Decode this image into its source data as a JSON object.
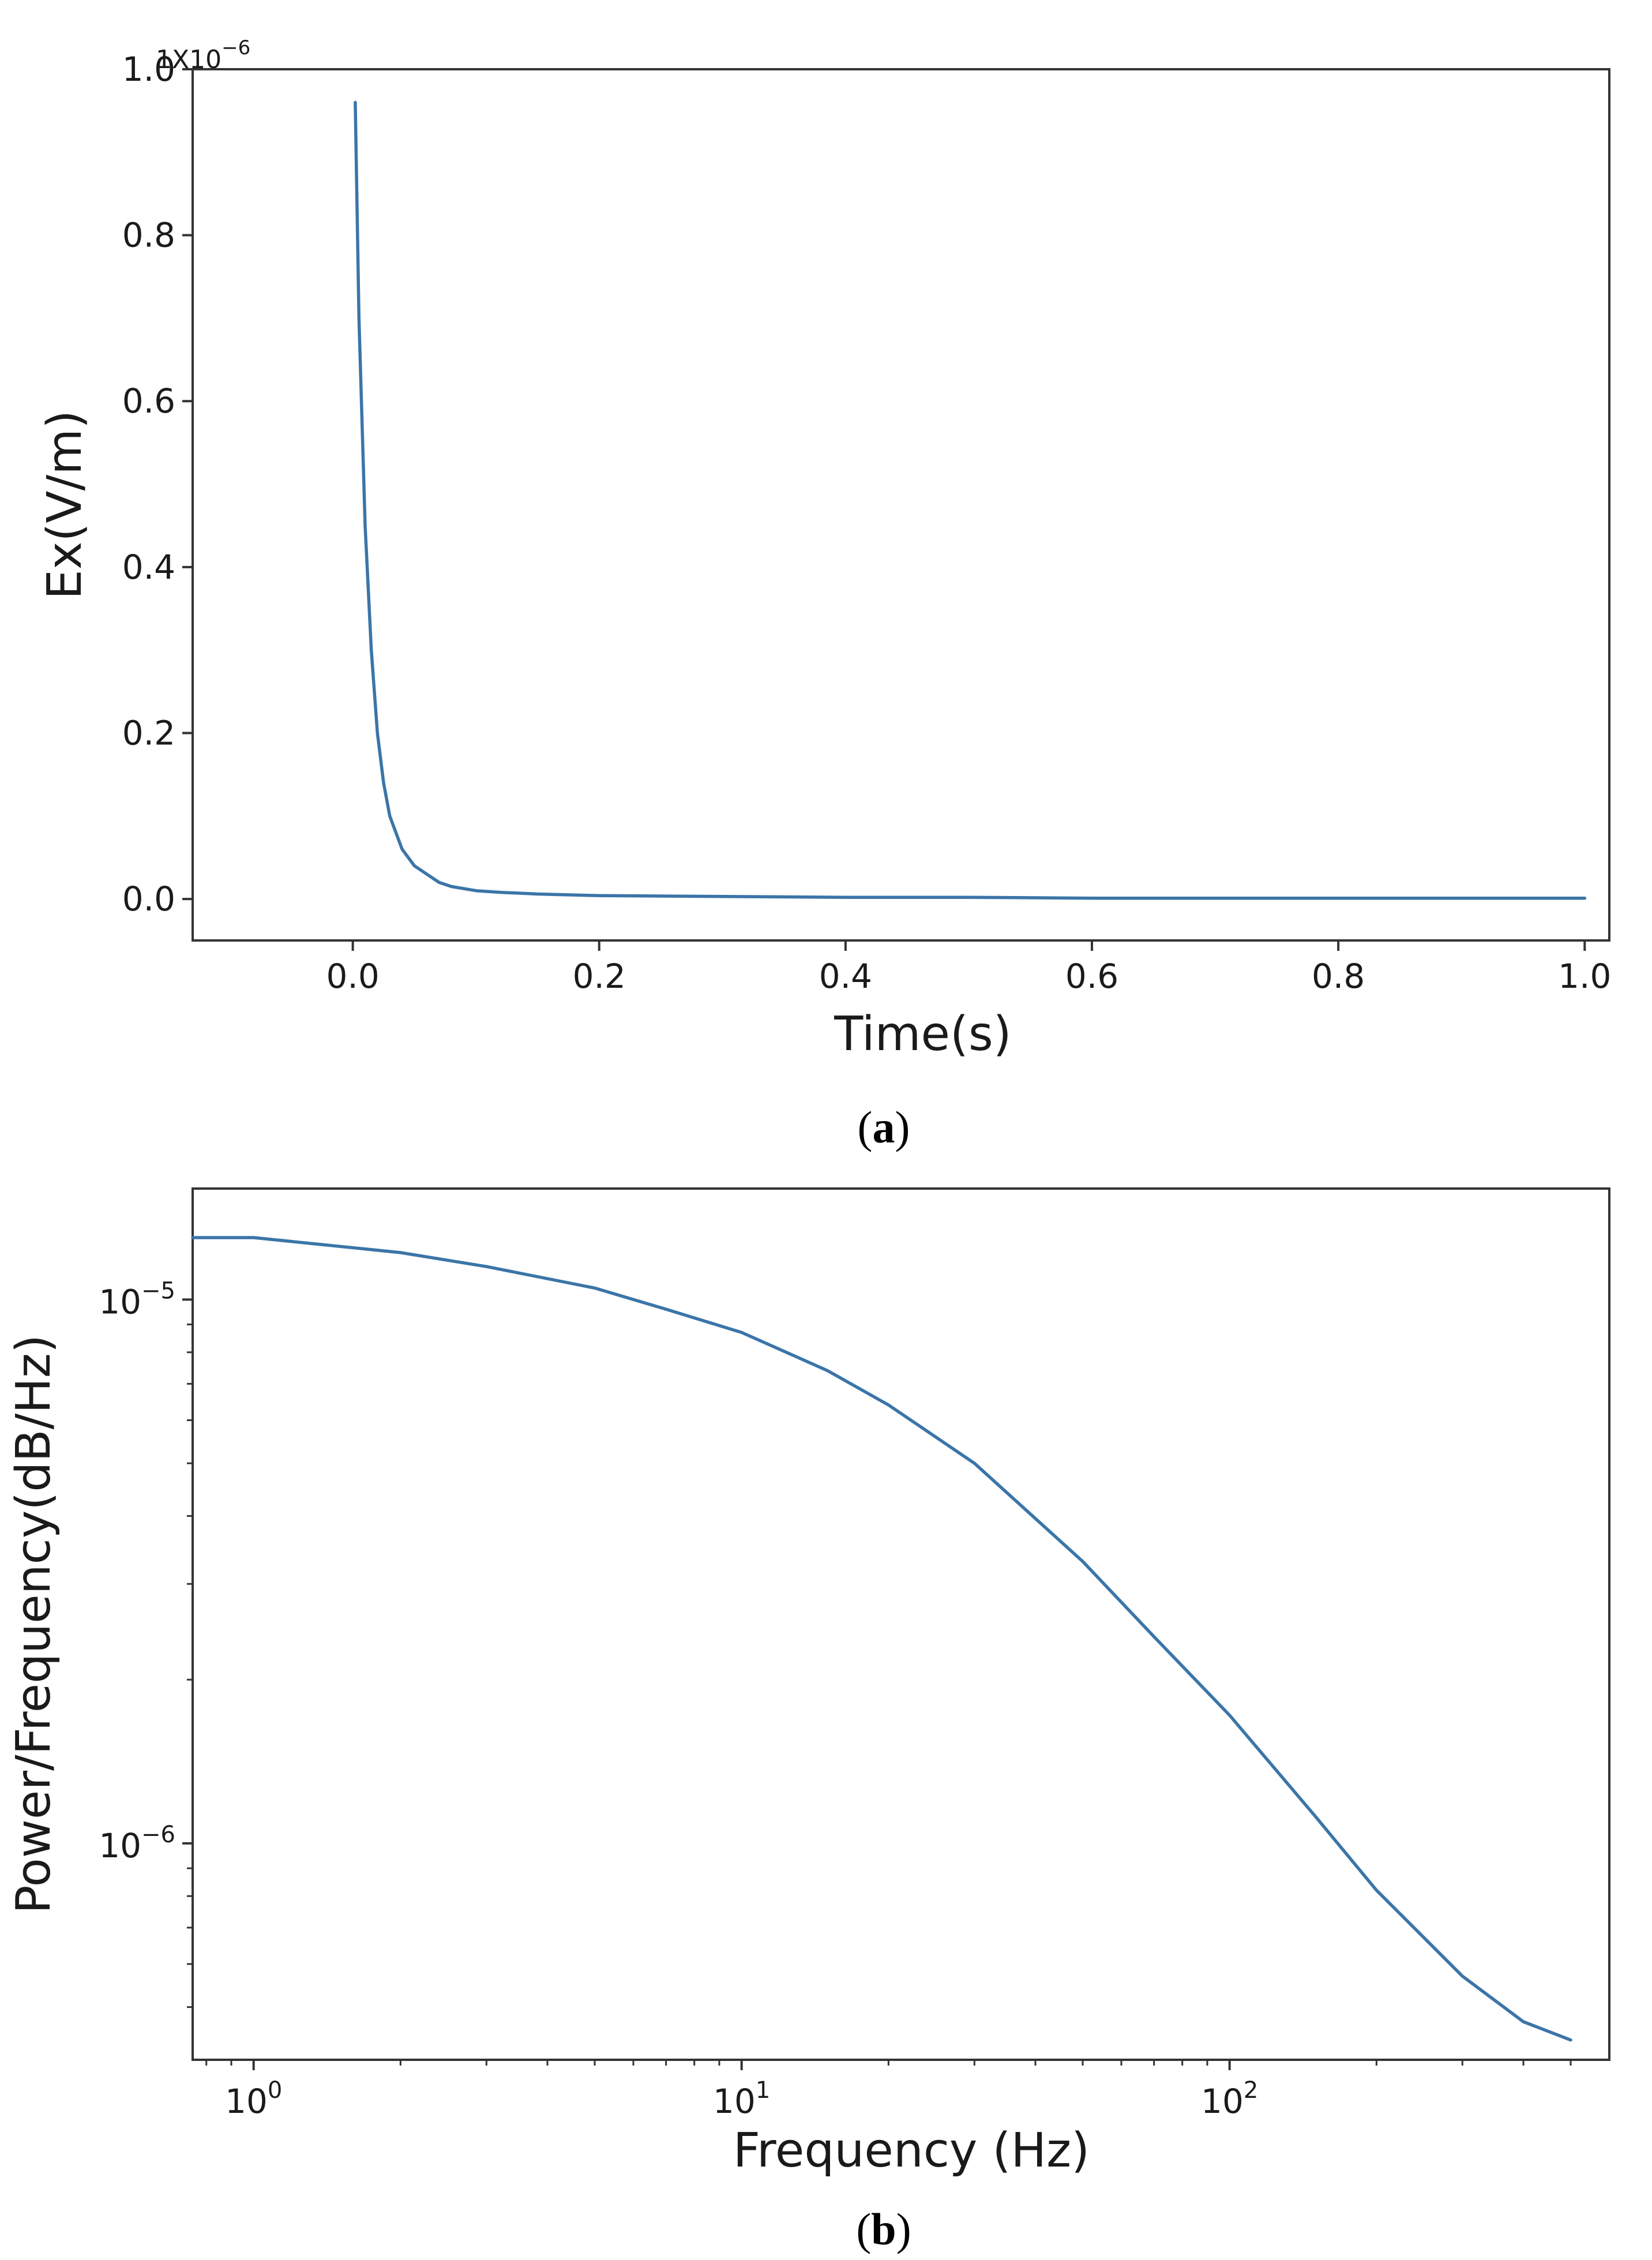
{
  "chart_data": [
    {
      "type": "line",
      "caption": "(a)",
      "caption_letter": "a",
      "xlabel": "Time(s)",
      "ylabel": "Ex(V/m)",
      "y_offset_label": "1X10",
      "y_offset_exponent": "−6",
      "xlim": [
        -0.13,
        1.02
      ],
      "ylim": [
        -0.05,
        1.0
      ],
      "x_ticks": [
        0.0,
        0.2,
        0.4,
        0.6,
        0.8,
        1.0
      ],
      "x_tick_labels": [
        "0.0",
        "0.2",
        "0.4",
        "0.6",
        "0.8",
        "1.0"
      ],
      "y_ticks": [
        0.0,
        0.2,
        0.4,
        0.6,
        0.8,
        1.0
      ],
      "y_tick_labels": [
        "0.0",
        "0.2",
        "0.4",
        "0.6",
        "0.8",
        "1.0"
      ],
      "grid": false,
      "color": "#3b75a8",
      "series": [
        {
          "x": [
            0.002,
            0.005,
            0.01,
            0.015,
            0.02,
            0.025,
            0.03,
            0.04,
            0.05,
            0.06,
            0.07,
            0.08,
            0.1,
            0.12,
            0.15,
            0.2,
            0.3,
            0.4,
            0.5,
            0.6,
            0.7,
            0.8,
            0.9,
            1.0
          ],
          "y": [
            0.96,
            0.7,
            0.45,
            0.3,
            0.2,
            0.14,
            0.1,
            0.06,
            0.04,
            0.03,
            0.02,
            0.015,
            0.01,
            0.008,
            0.006,
            0.004,
            0.003,
            0.002,
            0.002,
            0.001,
            0.001,
            0.001,
            0.001,
            0.001
          ]
        }
      ]
    },
    {
      "type": "line",
      "caption": "(b)",
      "caption_letter": "b",
      "xlabel": "Frequency (Hz)",
      "ylabel": "Power/Frequency(dB/Hz)",
      "x_scale": "log",
      "y_scale": "log",
      "xlim": [
        0.75,
        600
      ],
      "ylim": [
        4e-07,
        1.6e-05
      ],
      "x_ticks": [
        1,
        10,
        100
      ],
      "x_tick_labels": [
        {
          "base": "10",
          "exp": "0"
        },
        {
          "base": "10",
          "exp": "1"
        },
        {
          "base": "10",
          "exp": "2"
        }
      ],
      "y_ticks": [
        1e-06,
        1e-05
      ],
      "y_tick_labels": [
        {
          "base": "10",
          "exp": "−6"
        },
        {
          "base": "10",
          "exp": "−5"
        }
      ],
      "grid": false,
      "color": "#3b75a8",
      "series": [
        {
          "x": [
            0.75,
            1,
            2,
            3,
            5,
            7,
            10,
            15,
            20,
            30,
            50,
            70,
            100,
            150,
            200,
            300,
            400,
            500
          ],
          "y": [
            1.3e-05,
            1.3e-05,
            1.22e-05,
            1.15e-05,
            1.05e-05,
            9.6e-06,
            8.7e-06,
            7.4e-06,
            6.4e-06,
            5e-06,
            3.3e-06,
            2.4e-06,
            1.72e-06,
            1.12e-06,
            8.2e-07,
            5.7e-07,
            4.7e-07,
            4.35e-07
          ]
        }
      ]
    }
  ]
}
